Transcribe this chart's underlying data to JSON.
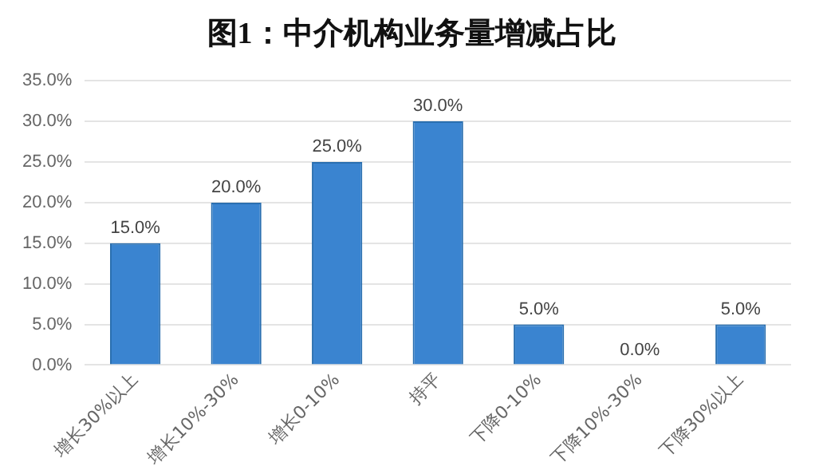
{
  "chart_data": {
    "type": "bar",
    "title": "图1：中介机构业务量增减占比",
    "categories": [
      "增长30%以上",
      "增长10%-30%",
      "增长0-10%",
      "持平",
      "下降0-10%",
      "下降10%-30%",
      "下降30%以上"
    ],
    "values": [
      15,
      20,
      25,
      30,
      5,
      0,
      5
    ],
    "value_labels": [
      "15.0%",
      "20.0%",
      "25.0%",
      "30.0%",
      "5.0%",
      "0.0%",
      "5.0%"
    ],
    "color": "#3a84d0",
    "ylim": [
      0,
      35
    ],
    "yticks": [
      {
        "value": 0,
        "label": "0.0%"
      },
      {
        "value": 5,
        "label": "5.0%"
      },
      {
        "value": 10,
        "label": "10.0%"
      },
      {
        "value": 15,
        "label": "15.0%"
      },
      {
        "value": 20,
        "label": "20.0%"
      },
      {
        "value": 25,
        "label": "25.0%"
      },
      {
        "value": 30,
        "label": "30.0%"
      },
      {
        "value": 35,
        "label": "35.0%"
      }
    ],
    "grid": "y",
    "legend": false
  }
}
